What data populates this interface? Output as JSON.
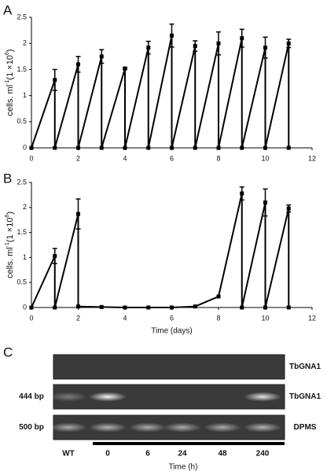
{
  "chart_data": [
    {
      "type": "line",
      "panel": "A",
      "y_label": [
        "cells. ml",
        "-1",
        "(1 ×10",
        "6",
        ")"
      ],
      "xlim": [
        0,
        12
      ],
      "xticks": [
        0,
        2,
        4,
        6,
        8,
        10,
        12
      ],
      "ylim": [
        0,
        2.5
      ],
      "yticks": [
        0,
        0.5,
        1,
        1.5,
        2,
        2.5
      ],
      "color": "#000000",
      "x": [
        0,
        1,
        1,
        2,
        2,
        3,
        3,
        4,
        4,
        5,
        5,
        6,
        6,
        7,
        7,
        8,
        8,
        9,
        9,
        10,
        10,
        11,
        11
      ],
      "values": [
        0,
        1.3,
        0,
        1.6,
        0,
        1.75,
        0,
        1.52,
        0,
        1.92,
        0,
        2.15,
        0,
        1.95,
        0,
        2.0,
        0,
        2.1,
        0,
        1.92,
        0,
        2.0,
        0
      ],
      "errors": [
        null,
        0.2,
        null,
        0.15,
        null,
        0.13,
        null,
        0.02,
        null,
        0.12,
        null,
        0.22,
        null,
        0.1,
        null,
        0.22,
        null,
        0.17,
        null,
        0.2,
        null,
        0.08,
        null
      ]
    },
    {
      "type": "line",
      "panel": "B",
      "y_label": [
        "cells. ml",
        "-1",
        "(1 ×10",
        "6",
        ")"
      ],
      "x_label": "Time (days)",
      "xlim": [
        0,
        12
      ],
      "xticks": [
        0,
        2,
        4,
        6,
        8,
        10,
        12
      ],
      "ylim": [
        0,
        2.5
      ],
      "yticks": [
        0,
        0.5,
        1,
        1.5,
        2,
        2.5
      ],
      "color": "#000000",
      "x": [
        0,
        1,
        1,
        2,
        2,
        3,
        4,
        5,
        6,
        7,
        8,
        9,
        9,
        10,
        10,
        11,
        11
      ],
      "values": [
        0,
        1.03,
        0,
        1.87,
        0.02,
        0.01,
        0,
        0,
        0,
        0.02,
        0.22,
        2.28,
        0,
        2.1,
        0,
        1.98,
        0
      ],
      "errors": [
        null,
        0.15,
        null,
        0.3,
        null,
        null,
        null,
        null,
        null,
        null,
        null,
        0.13,
        null,
        0.27,
        null,
        0.07,
        null
      ]
    }
  ],
  "gel": {
    "panel": "C",
    "rows": [
      {
        "name": "TbGNA1"
      },
      {
        "size": "444 bp",
        "name": "TbGNA1"
      },
      {
        "size": "500 bp",
        "name": "DPMS"
      }
    ],
    "lanes": [
      "WT",
      "0",
      "6",
      "24",
      "48",
      "240"
    ],
    "x_label": "Time (h)"
  }
}
